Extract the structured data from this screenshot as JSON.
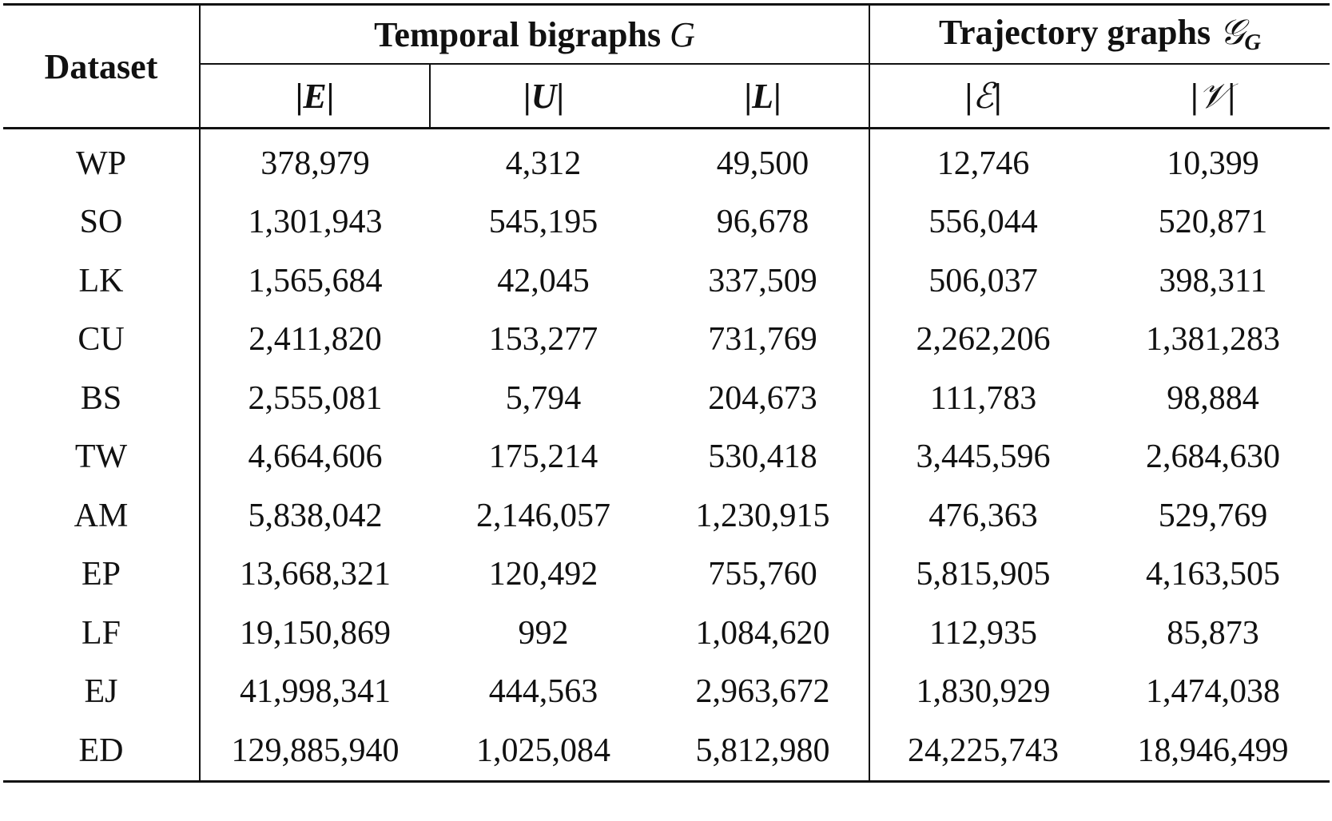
{
  "table": {
    "header": {
      "dataset_label": "Dataset",
      "group1_title": "Temporal bigraphs",
      "group1_symbol": "G",
      "group2_title": "Trajectory graphs",
      "group2_symbol": "𝒢",
      "group2_subscript": "G",
      "columns": [
        {
          "bar_open": "|",
          "symbol": "E",
          "bar_close": "|"
        },
        {
          "bar_open": "|",
          "symbol": "U",
          "bar_close": "|"
        },
        {
          "bar_open": "|",
          "symbol": "L",
          "bar_close": "|"
        },
        {
          "bar_open": "|",
          "symbol": "ℰ",
          "bar_close": "|"
        },
        {
          "bar_open": "|",
          "symbol": "𝒱",
          "bar_close": "|"
        }
      ]
    },
    "rows": [
      {
        "dataset": "WP",
        "values": [
          "378,979",
          "4,312",
          "49,500",
          "12,746",
          "10,399"
        ]
      },
      {
        "dataset": "SO",
        "values": [
          "1,301,943",
          "545,195",
          "96,678",
          "556,044",
          "520,871"
        ]
      },
      {
        "dataset": "LK",
        "values": [
          "1,565,684",
          "42,045",
          "337,509",
          "506,037",
          "398,311"
        ]
      },
      {
        "dataset": "CU",
        "values": [
          "2,411,820",
          "153,277",
          "731,769",
          "2,262,206",
          "1,381,283"
        ]
      },
      {
        "dataset": "BS",
        "values": [
          "2,555,081",
          "5,794",
          "204,673",
          "111,783",
          "98,884"
        ]
      },
      {
        "dataset": "TW",
        "values": [
          "4,664,606",
          "175,214",
          "530,418",
          "3,445,596",
          "2,684,630"
        ]
      },
      {
        "dataset": "AM",
        "values": [
          "5,838,042",
          "2,146,057",
          "1,230,915",
          "476,363",
          "529,769"
        ]
      },
      {
        "dataset": "EP",
        "values": [
          "13,668,321",
          "120,492",
          "755,760",
          "5,815,905",
          "4,163,505"
        ]
      },
      {
        "dataset": "LF",
        "values": [
          "19,150,869",
          "992",
          "1,084,620",
          "112,935",
          "85,873"
        ]
      },
      {
        "dataset": "EJ",
        "values": [
          "41,998,341",
          "444,563",
          "2,963,672",
          "1,830,929",
          "1,474,038"
        ]
      },
      {
        "dataset": "ED",
        "values": [
          "129,885,940",
          "1,025,084",
          "5,812,980",
          "24,225,743",
          "18,946,499"
        ]
      }
    ]
  }
}
